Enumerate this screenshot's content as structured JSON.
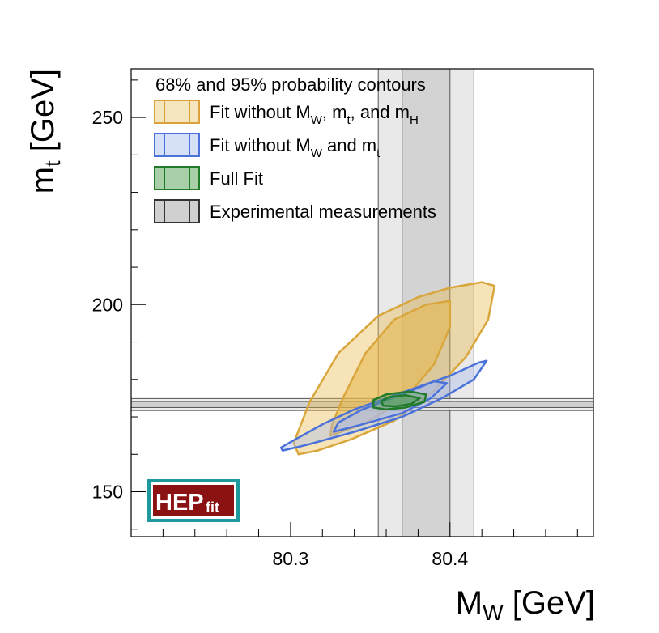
{
  "chart_data": {
    "type": "contour",
    "xlabel": "M",
    "xlabel_sub": "W",
    "xlabel_unit": "[GeV]",
    "ylabel": "m",
    "ylabel_sub": "t",
    "ylabel_unit": "[GeV]",
    "xlim": [
      80.2,
      80.49
    ],
    "ylim": [
      138,
      263
    ],
    "x_major_ticks": [
      80.3,
      80.4
    ],
    "x_tick_labels": [
      "80.3",
      "80.4"
    ],
    "x_minor_step": 0.02,
    "y_major_ticks": [
      150,
      200,
      250
    ],
    "y_tick_labels": [
      "150",
      "200",
      "250"
    ],
    "y_minor_step": 10,
    "legend": {
      "title": "68% and 95% probability contours",
      "placement": "top-left",
      "entries": [
        {
          "id": "no_mw_mt_mh",
          "parts": [
            {
              "t": "Fit without M"
            },
            {
              "t": "W",
              "sub": true
            },
            {
              "t": ", m"
            },
            {
              "t": "t",
              "sub": true
            },
            {
              "t": ", and m"
            },
            {
              "t": "H",
              "sub": true
            }
          ]
        },
        {
          "id": "no_mw_mt",
          "parts": [
            {
              "t": "Fit without M"
            },
            {
              "t": "W",
              "sub": true
            },
            {
              "t": " and m"
            },
            {
              "t": "t",
              "sub": true
            }
          ]
        },
        {
          "id": "full",
          "parts": [
            {
              "t": "Full Fit"
            }
          ]
        },
        {
          "id": "exp",
          "parts": [
            {
              "t": "Experimental measurements"
            }
          ]
        }
      ]
    },
    "series": [
      {
        "id": "no_mw_mt_mh",
        "name": "Fit without MW, mt, and mH",
        "fill": "#e8b84a",
        "stroke": "#d9a63c",
        "contour95": [
          [
            80.305,
            160
          ],
          [
            80.317,
            161
          ],
          [
            80.338,
            164
          ],
          [
            80.365,
            169
          ],
          [
            80.39,
            177
          ],
          [
            80.41,
            186
          ],
          [
            80.424,
            196
          ],
          [
            80.428,
            205
          ],
          [
            80.42,
            206
          ],
          [
            80.4,
            204.5
          ],
          [
            80.38,
            202
          ],
          [
            80.355,
            197
          ],
          [
            80.33,
            187
          ],
          [
            80.312,
            174
          ],
          [
            80.302,
            163
          ]
        ],
        "contour68": [
          [
            80.325,
            165
          ],
          [
            80.345,
            168
          ],
          [
            80.37,
            174
          ],
          [
            80.39,
            184
          ],
          [
            80.4,
            194
          ],
          [
            80.4,
            201
          ],
          [
            80.385,
            200
          ],
          [
            80.365,
            196
          ],
          [
            80.347,
            187
          ],
          [
            80.334,
            176
          ],
          [
            80.326,
            168
          ]
        ]
      },
      {
        "id": "no_mw_mt",
        "name": "Fit without MW and mt",
        "fill": "#a9bcee",
        "stroke": "#4a72d9",
        "contour95": [
          [
            80.295,
            161
          ],
          [
            80.31,
            162.5
          ],
          [
            80.34,
            166
          ],
          [
            80.37,
            170
          ],
          [
            80.395,
            175
          ],
          [
            80.415,
            180
          ],
          [
            80.423,
            185
          ],
          [
            80.418,
            184.5
          ],
          [
            80.4,
            181
          ],
          [
            80.37,
            176.5
          ],
          [
            80.34,
            172
          ],
          [
            80.32,
            168
          ],
          [
            80.303,
            164
          ],
          [
            80.294,
            161.8
          ]
        ],
        "contour68": [
          [
            80.327,
            166
          ],
          [
            80.345,
            168
          ],
          [
            80.37,
            171
          ],
          [
            80.388,
            175
          ],
          [
            80.398,
            179
          ],
          [
            80.39,
            179.5
          ],
          [
            80.37,
            176
          ],
          [
            80.345,
            172
          ],
          [
            80.33,
            168.5
          ]
        ]
      },
      {
        "id": "full",
        "name": "Full Fit",
        "fill": "#4e9a56",
        "stroke": "#1f7a2a",
        "contour95": [
          [
            80.352,
            172.5
          ],
          [
            80.36,
            172
          ],
          [
            80.372,
            172.5
          ],
          [
            80.384,
            174
          ],
          [
            80.385,
            176
          ],
          [
            80.375,
            176.8
          ],
          [
            80.36,
            176
          ],
          [
            80.352,
            174.5
          ]
        ],
        "contour68": [
          [
            80.358,
            173
          ],
          [
            80.366,
            172.8
          ],
          [
            80.376,
            173.5
          ],
          [
            80.381,
            175
          ],
          [
            80.372,
            175.8
          ],
          [
            80.362,
            175.3
          ],
          [
            80.357,
            174.2
          ]
        ]
      }
    ],
    "experimental": {
      "mw_central": 80.385,
      "mw_sigma": [
        80.37,
        80.4
      ],
      "mw_2sigma": [
        80.355,
        80.415
      ],
      "mt_central": 173.3,
      "mt_sigma": [
        172.5,
        174.1
      ],
      "mt_2sigma": [
        171.7,
        174.9
      ]
    }
  },
  "logo": {
    "main": "HEP",
    "sub": "fit"
  }
}
